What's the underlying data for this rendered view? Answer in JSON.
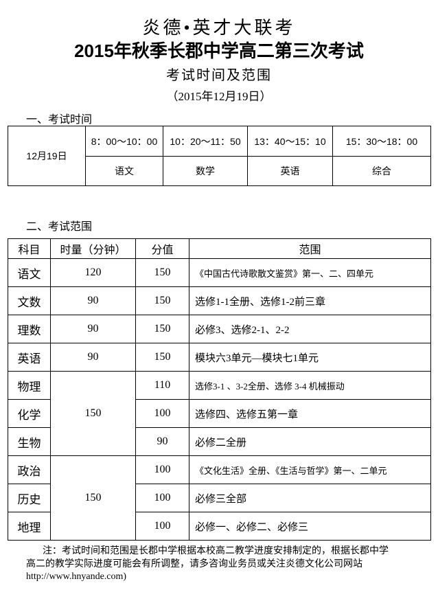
{
  "header": {
    "brand": "炎德•英才大联考",
    "title": "2015年秋季长郡中学高二第三次考试",
    "subtitle": "考试时间及范围",
    "date": "（2015年12月19日）"
  },
  "schedule": {
    "heading": "一、考试时间",
    "date": "12月19日",
    "slots": [
      {
        "time": "8：00～10：00",
        "subject": "语文"
      },
      {
        "time": "10：20～11：50",
        "subject": "数学"
      },
      {
        "time": "13：40～15：10",
        "subject": "英语"
      },
      {
        "time": "15：30～18：00",
        "subject": "综合"
      }
    ]
  },
  "scope": {
    "heading": "二、考试范围",
    "columns": [
      "科目",
      "时量（分钟）",
      "分值",
      "范围"
    ],
    "rows": [
      {
        "subject": "语文",
        "duration": "120",
        "score": "150",
        "range": "《中国古代诗歌散文鉴赏》第一、二、四单元"
      },
      {
        "subject": "文数",
        "duration": "90",
        "score": "150",
        "range": "选修1-1全册、选修1-2前三章"
      },
      {
        "subject": "理数",
        "duration": "90",
        "score": "150",
        "range": "必修3、选修2-1、2-2"
      },
      {
        "subject": "英语",
        "duration": "90",
        "score": "150",
        "range": "模块六3单元—模块七1单元"
      },
      {
        "subject": "物理",
        "duration": "150",
        "score": "110",
        "range": "选修3-1 、3-2全册、选修 3-4 机械振动"
      },
      {
        "subject": "化学",
        "score": "100",
        "range": "选修四、选修五第一章"
      },
      {
        "subject": "生物",
        "score": "90",
        "range": "必修二全册"
      },
      {
        "subject": "政治",
        "duration": "150",
        "score": "100",
        "range": "《文化生活》全册、《生活与哲学》第一、二单元"
      },
      {
        "subject": "历史",
        "score": "100",
        "range": "必修三全部"
      },
      {
        "subject": "地理",
        "score": "100",
        "range": "必修一、必修二、必修三"
      }
    ]
  },
  "note": {
    "line1": "注：考试时间和范围是长郡中学根据本校高二教学进度安排制定的，根据长郡中学",
    "line2": "高二的教学实际进度可能会有所调整，请多咨询业务员或关注炎德文化公司网站",
    "url": "http://www.hnyande.com)"
  }
}
